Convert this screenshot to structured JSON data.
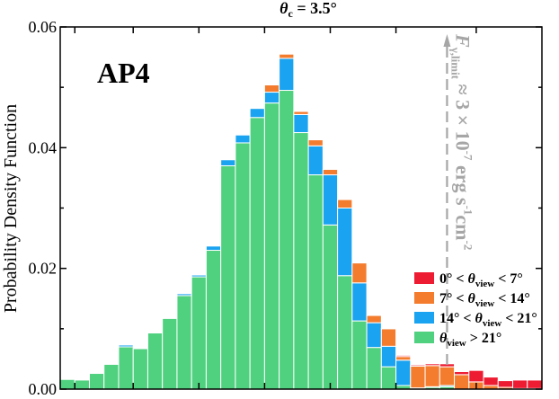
{
  "chart_data": {
    "type": "bar",
    "stacked": true,
    "title": "θ_c = 3.5°",
    "title_parts": {
      "symbol": "θ",
      "sub": "c",
      "rest": " = 3.5°"
    },
    "panel_label": "AP4",
    "ylabel": "Probability Density Function",
    "xlabel": "",
    "ylim": [
      0,
      0.06
    ],
    "yticks": [
      "0.00",
      "0.02",
      "0.04",
      "0.06"
    ],
    "bins": 33,
    "series": [
      {
        "name": "θ_view > 21°",
        "color": "#4fd17f",
        "label_parts": {
          "s": "θ",
          "sub": "view",
          "t": " > 21°"
        },
        "values": [
          0.0016,
          0.0015,
          0.0026,
          0.0041,
          0.007,
          0.0067,
          0.0093,
          0.0117,
          0.0155,
          0.0186,
          0.023,
          0.037,
          0.0408,
          0.045,
          0.0474,
          0.0495,
          0.0425,
          0.0355,
          0.0272,
          0.0188,
          0.0113,
          0.0069,
          0.0037,
          0.0006,
          0.0001,
          0.0003,
          0.0004,
          0,
          0,
          0,
          0,
          0,
          0
        ]
      },
      {
        "name": "14° < θ_view < 21°",
        "color": "#1aa3f0",
        "label_parts": {
          "a": "14° < ",
          "s": "θ",
          "sub": "view",
          "t": " < 21°"
        },
        "values": [
          0,
          0,
          0,
          0,
          0.0003,
          0,
          0,
          0,
          0.0003,
          0.0003,
          0.0007,
          0.001,
          0.0013,
          0.0015,
          0.0018,
          0.0053,
          0.003,
          0.0048,
          0.0083,
          0.0112,
          0.0063,
          0.0041,
          0.0034,
          0.0042,
          0.0001,
          0.0001,
          0.0002,
          0,
          0,
          0,
          0,
          0,
          0
        ]
      },
      {
        "name": "7° < θ_view < 14°",
        "color": "#f47c2e",
        "label_parts": {
          "a": "7° < ",
          "s": "θ",
          "sub": "view",
          "t": " < 14°"
        },
        "values": [
          0,
          0,
          0,
          0,
          0,
          0,
          0,
          0,
          0,
          0,
          0,
          0,
          0,
          0,
          0.0012,
          0.0007,
          0.0005,
          0.001,
          0.0009,
          0.0014,
          0.0033,
          0.0012,
          0.0029,
          0.0006,
          0.0036,
          0.0035,
          0.0031,
          0.0024,
          0.0012,
          0.0006,
          0.0003,
          0.0001,
          0.0001
        ]
      },
      {
        "name": "0° < θ_view < 7°",
        "color": "#ee1c32",
        "label_parts": {
          "a": "0° < ",
          "s": "θ",
          "sub": "view",
          "t": " < 7°"
        },
        "values": [
          0,
          0,
          0,
          0,
          0,
          0,
          0,
          0,
          0,
          0,
          0,
          0,
          0,
          0,
          0.0001,
          0,
          0,
          0,
          0,
          0,
          0,
          0,
          0.0001,
          0.0002,
          0.0002,
          0.0003,
          0.0005,
          0.0005,
          0.0019,
          0.0014,
          0.0011,
          0.0014,
          0.0014
        ]
      }
    ],
    "legend_order": [
      "0° < θ_view < 7°",
      "7° < θ_view < 14°",
      "14° < θ_view < 21°",
      "θ_view > 21°"
    ],
    "legend_position": "center-right",
    "annotation": {
      "type": "vertical-dashed-line",
      "x_bin": 26.5,
      "text_parts": {
        "sym": "F",
        "sub": "γ,limit",
        "approx": " ≈ 3 × 10",
        "exp1": "-7",
        "unit1": " erg s",
        "exp2": "-1",
        "unit2": "cm",
        "exp3": "-2"
      }
    }
  }
}
